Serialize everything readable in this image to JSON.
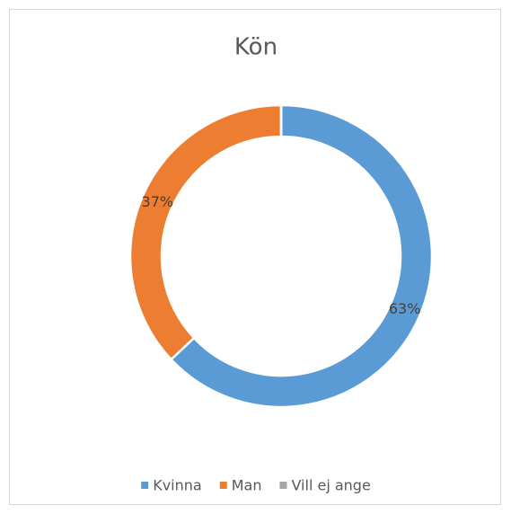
{
  "chart_data": {
    "type": "donut",
    "title": "Kön",
    "categories": [
      "Kvinna",
      "Man",
      "Vill ej ange"
    ],
    "values": [
      63,
      37,
      0
    ],
    "value_labels": [
      "63%",
      "37%",
      null
    ],
    "colors": [
      "#5b9bd5",
      "#ed7d31",
      "#a5a5a5"
    ],
    "legend": "bottom"
  }
}
